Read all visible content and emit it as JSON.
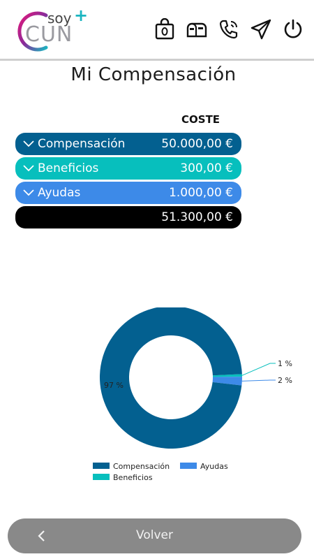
{
  "header": {
    "logo": {
      "soy": "soy",
      "plus": "+",
      "cun": "CUN"
    },
    "icons": [
      "shopping-bag-icon",
      "mailbox-icon",
      "phone-icon",
      "send-icon",
      "power-icon"
    ]
  },
  "page": {
    "title": "Mi Compensación"
  },
  "table": {
    "column_header": "COSTE",
    "rows": [
      {
        "label": "Compensación",
        "value": "50.000,00 €",
        "color": "#036090"
      },
      {
        "label": "Beneficios",
        "value": "300,00 €",
        "color": "#07bfbd"
      },
      {
        "label": "Ayudas",
        "value": "1.000,00 €",
        "color": "#3d8ae8"
      }
    ],
    "total": "51.300,00 €"
  },
  "chart_data": {
    "type": "pie",
    "donut": true,
    "series": [
      {
        "name": "Compensación",
        "value": 50000,
        "label": "97 %",
        "color": "#036090"
      },
      {
        "name": "Beneficios",
        "value": 300,
        "label": "1 %",
        "color": "#07bfbd"
      },
      {
        "name": "Ayudas",
        "value": 1000,
        "label": "2 %",
        "color": "#3d8ae8"
      }
    ],
    "legend": [
      "Compensación",
      "Ayudas",
      "Beneficios"
    ],
    "legend_placement": "bottom"
  },
  "footer": {
    "back_label": "Volver"
  }
}
